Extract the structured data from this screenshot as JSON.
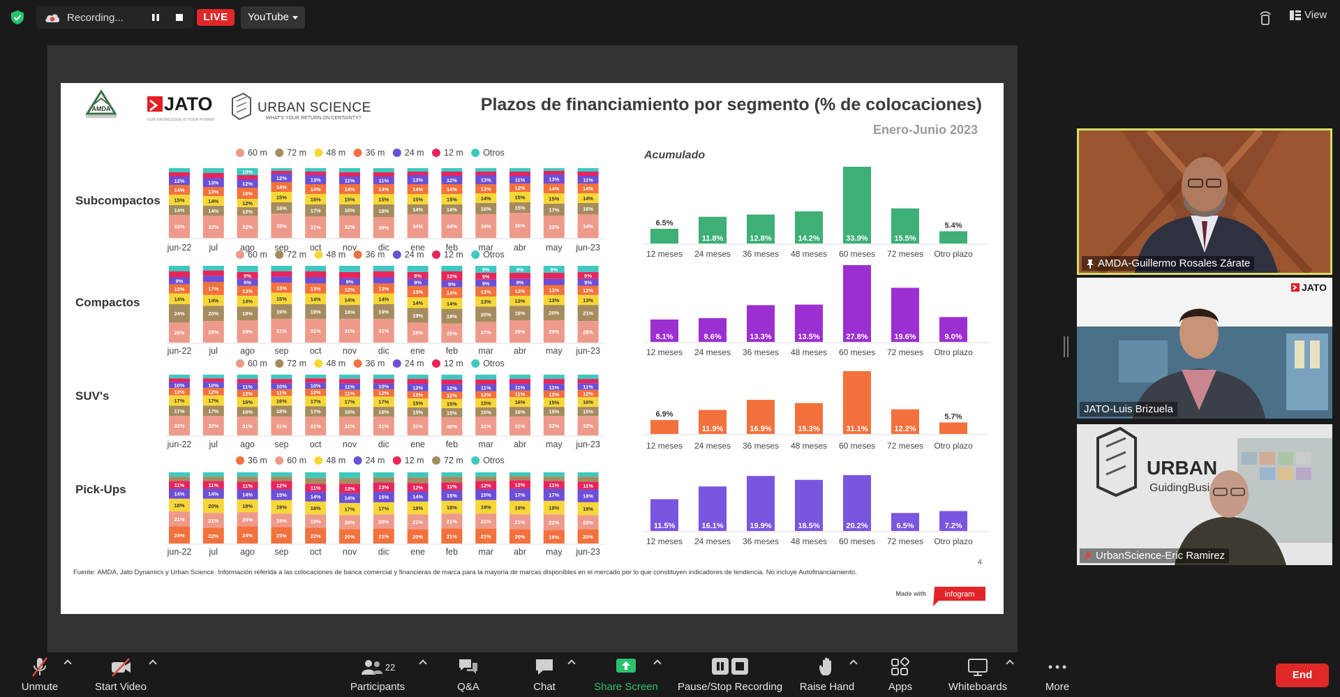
{
  "topbar": {
    "recording_label": "Recording...",
    "live_label": "LIVE",
    "stream_target": "YouTube",
    "view_label": "View"
  },
  "slide": {
    "title": "Plazos de financiamiento por segmento (% de colocaciones)",
    "subtitle": "Enero-Junio 2023",
    "logos": {
      "jato": "JATO",
      "jato_tag": "OUR KNOWLEDGE IS YOUR POWER",
      "urban": "URBAN SCIENCE",
      "urban_tag": "WHAT'S YOUR RETURN ON CERTAINTY?",
      "amda": "AMDA"
    },
    "accumulated_label": "Acumulado",
    "footnote": "Fuente: AMDA, Jato Dynamics y Urban Science. Información referida a las colocaciones de banca comercial y financieras de marca para la mayoría de marcas disponibles en el mercado por lo que constituyen indicadores de tendencia. No incluye Autofinanciamiento.",
    "page_number": "4",
    "made_with": "Made with",
    "infogram": "infogram"
  },
  "chart_data": [
    {
      "type": "bar",
      "stacked": true,
      "segment": "Subcompactos",
      "categories": [
        "jun-22",
        "jul",
        "ago",
        "sep",
        "oct",
        "nov",
        "dic",
        "ene",
        "feb",
        "mar",
        "abr",
        "may",
        "jun-23"
      ],
      "legend": [
        "60 m",
        "72 m",
        "48 m",
        "36 m",
        "24 m",
        "12 m",
        "Otros"
      ],
      "series": [
        {
          "name": "60 m",
          "values": [
            33,
            32,
            32,
            35,
            31,
            32,
            30,
            34,
            34,
            34,
            36,
            32,
            34
          ]
        },
        {
          "name": "72 m",
          "values": [
            14,
            14,
            12,
            16,
            17,
            16,
            18,
            14,
            14,
            16,
            15,
            17,
            16
          ]
        },
        {
          "name": "48 m",
          "values": [
            15,
            14,
            12,
            15,
            15,
            15,
            15,
            15,
            15,
            14,
            15,
            15,
            14
          ]
        },
        {
          "name": "36 m",
          "values": [
            14,
            13,
            16,
            14,
            14,
            14,
            14,
            14,
            14,
            13,
            12,
            14,
            14
          ]
        },
        {
          "name": "24 m",
          "values": [
            12,
            13,
            12,
            12,
            13,
            11,
            11,
            13,
            12,
            13,
            11,
            13,
            11
          ]
        },
        {
          "name": "12 m",
          "values": [
            6,
            7,
            6,
            4,
            5,
            6,
            6,
            5,
            6,
            5,
            6,
            5,
            6
          ]
        },
        {
          "name": "Otros",
          "values": [
            6,
            7,
            10,
            4,
            5,
            6,
            6,
            5,
            5,
            5,
            5,
            4,
            5
          ]
        }
      ],
      "accumulated": {
        "categories": [
          "12 meses",
          "24 meses",
          "36 meses",
          "48 meses",
          "60 meses",
          "72 meses",
          "Otro plazo"
        ],
        "values": [
          6.5,
          11.8,
          12.8,
          14.2,
          33.9,
          15.5,
          5.4
        ]
      }
    },
    {
      "type": "bar",
      "stacked": true,
      "segment": "Compactos",
      "categories": [
        "jun-22",
        "jul",
        "ago",
        "sep",
        "oct",
        "nov",
        "dic",
        "ene",
        "feb",
        "mar",
        "abr",
        "may",
        "jun-23"
      ],
      "legend": [
        "60 m",
        "72 m",
        "48 m",
        "36 m",
        "24 m",
        "12 m",
        "Otros"
      ],
      "series": [
        {
          "name": "60 m",
          "values": [
            26,
            28,
            29,
            31,
            31,
            31,
            31,
            26,
            25,
            27,
            29,
            29,
            28
          ]
        },
        {
          "name": "72 m",
          "values": [
            24,
            20,
            18,
            19,
            19,
            18,
            19,
            19,
            19,
            20,
            19,
            20,
            21
          ]
        },
        {
          "name": "48 m",
          "values": [
            14,
            14,
            14,
            15,
            14,
            14,
            14,
            14,
            14,
            13,
            13,
            13,
            13
          ]
        },
        {
          "name": "36 m",
          "values": [
            12,
            17,
            13,
            13,
            13,
            12,
            13,
            15,
            14,
            13,
            13,
            13,
            12
          ]
        },
        {
          "name": "24 m",
          "values": [
            9,
            8,
            9,
            8,
            8,
            9,
            8,
            9,
            9,
            9,
            9,
            8,
            9
          ]
        },
        {
          "name": "12 m",
          "values": [
            8,
            7,
            9,
            7,
            8,
            8,
            8,
            9,
            12,
            9,
            8,
            8,
            9
          ]
        },
        {
          "name": "Otros",
          "values": [
            7,
            6,
            8,
            7,
            7,
            8,
            7,
            8,
            7,
            9,
            9,
            9,
            8
          ]
        }
      ],
      "accumulated": {
        "categories": [
          "12 meses",
          "24 meses",
          "36 meses",
          "48 meses",
          "60 meses",
          "72 meses",
          "Otro plazo"
        ],
        "values": [
          8.1,
          8.6,
          13.3,
          13.5,
          27.8,
          19.6,
          9.0
        ]
      }
    },
    {
      "type": "bar",
      "stacked": true,
      "segment": "SUV's",
      "categories": [
        "jun-22",
        "jul",
        "ago",
        "sep",
        "oct",
        "nov",
        "dic",
        "ene",
        "feb",
        "mar",
        "abr",
        "may",
        "jun-23"
      ],
      "legend": [
        "60 m",
        "72 m",
        "48 m",
        "36 m",
        "24 m",
        "12 m",
        "Otros"
      ],
      "series": [
        {
          "name": "60 m",
          "values": [
            32,
            32,
            31,
            31,
            31,
            31,
            31,
            31,
            30,
            31,
            31,
            32,
            32
          ]
        },
        {
          "name": "72 m",
          "values": [
            17,
            17,
            16,
            18,
            17,
            16,
            16,
            15,
            15,
            15,
            16,
            15,
            15
          ]
        },
        {
          "name": "48 m",
          "values": [
            17,
            17,
            16,
            16,
            17,
            17,
            17,
            15,
            15,
            15,
            16,
            15,
            16
          ]
        },
        {
          "name": "36 m",
          "values": [
            12,
            12,
            12,
            11,
            12,
            11,
            12,
            12,
            12,
            12,
            11,
            12,
            12
          ]
        },
        {
          "name": "24 m",
          "values": [
            10,
            10,
            11,
            10,
            10,
            11,
            10,
            12,
            12,
            11,
            11,
            11,
            11
          ]
        },
        {
          "name": "12 m",
          "values": [
            6,
            6,
            7,
            7,
            7,
            7,
            7,
            8,
            8,
            8,
            8,
            8,
            7
          ]
        },
        {
          "name": "Otros",
          "values": [
            6,
            6,
            7,
            7,
            6,
            7,
            7,
            7,
            8,
            8,
            7,
            7,
            7
          ]
        }
      ],
      "accumulated": {
        "categories": [
          "12 meses",
          "24 meses",
          "36 meses",
          "48 meses",
          "60 meses",
          "72 meses",
          "Otro plazo"
        ],
        "values": [
          6.9,
          11.9,
          16.9,
          15.3,
          31.1,
          12.2,
          5.7
        ]
      }
    },
    {
      "type": "bar",
      "stacked": true,
      "segment": "Pick-Ups",
      "categories": [
        "jun-22",
        "jul",
        "ago",
        "sep",
        "oct",
        "nov",
        "dic",
        "ene",
        "feb",
        "mar",
        "abr",
        "may",
        "jun-23"
      ],
      "legend": [
        "36 m",
        "60 m",
        "48 m",
        "24 m",
        "12 m",
        "72 m",
        "Otros"
      ],
      "series": [
        {
          "name": "36 m",
          "values": [
            24,
            22,
            24,
            23,
            22,
            20,
            21,
            20,
            21,
            21,
            20,
            19,
            20
          ]
        },
        {
          "name": "60 m",
          "values": [
            21,
            21,
            20,
            19,
            19,
            20,
            20,
            21,
            21,
            21,
            21,
            22,
            20
          ]
        },
        {
          "name": "48 m",
          "values": [
            18,
            20,
            18,
            19,
            18,
            17,
            17,
            18,
            18,
            19,
            19,
            19,
            18
          ]
        },
        {
          "name": "24 m",
          "values": [
            14,
            14,
            14,
            15,
            14,
            14,
            15,
            14,
            15,
            15,
            17,
            17,
            18
          ]
        },
        {
          "name": "12 m",
          "values": [
            11,
            11,
            11,
            12,
            11,
            13,
            13,
            12,
            11,
            12,
            12,
            11,
            11
          ]
        },
        {
          "name": "72 m",
          "values": [
            6,
            6,
            7,
            6,
            8,
            8,
            7,
            8,
            8,
            6,
            6,
            6,
            7
          ]
        },
        {
          "name": "Otros",
          "values": [
            6,
            6,
            6,
            6,
            8,
            8,
            7,
            7,
            6,
            6,
            5,
            6,
            6
          ]
        }
      ],
      "accumulated": {
        "categories": [
          "12 meses",
          "24 meses",
          "36 meses",
          "48 meses",
          "60 meses",
          "72 meses",
          "Otro plazo"
        ],
        "values": [
          11.5,
          16.1,
          19.9,
          18.5,
          20.2,
          6.5,
          7.2
        ]
      }
    }
  ],
  "colors": {
    "60 m": "#ee9a8b",
    "72 m": "#a58c5e",
    "48 m": "#f7d737",
    "36 m": "#f3713c",
    "24 m": "#6b4fd8",
    "12 m": "#e8255a",
    "Otros": "#3fc8c0",
    "acc_subcompactos": "#3daf77",
    "acc_compactos": "#9b2fd1",
    "acc_suvs": "#f3713c",
    "acc_pickups": "#7a55e0"
  },
  "participants": [
    {
      "name": "AMDA-Guillermo Rosales Zárate",
      "pinned": true,
      "muted": false
    },
    {
      "name": "JATO-Luis Brizuela",
      "pinned": false,
      "muted": false
    },
    {
      "name": "UrbanScience-Eric Ramirez",
      "pinned": false,
      "muted": true
    }
  ],
  "video_overlays": {
    "jato_logo": "JATO",
    "urban_sign": "URBAN",
    "urban_sign_sub": "GuidingBusi"
  },
  "toolbar": {
    "unmute": "Unmute",
    "start_video": "Start Video",
    "participants": "Participants",
    "participants_count": "22",
    "qa": "Q&A",
    "chat": "Chat",
    "share_screen": "Share Screen",
    "pause_stop_recording": "Pause/Stop Recording",
    "raise_hand": "Raise Hand",
    "apps": "Apps",
    "whiteboards": "Whiteboards",
    "more": "More",
    "end": "End"
  }
}
